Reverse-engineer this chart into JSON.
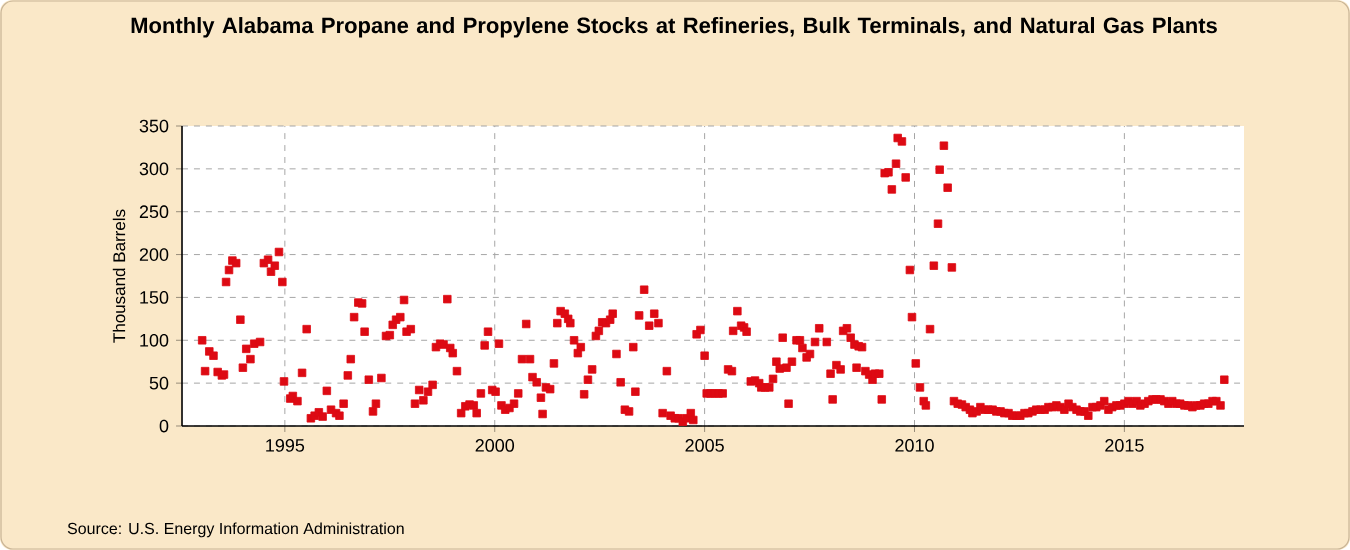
{
  "chart_data": {
    "type": "scatter",
    "title": "Monthly Alabama Propane and Propylene Stocks at Refineries, Bulk Terminals, and Natural Gas Plants",
    "ylabel": "Thousand Barrels",
    "annotations": [
      "Source: U.S. Energy Information Administration"
    ],
    "xlim": [
      1992.55,
      2017.85
    ],
    "xticks": [
      1995,
      2000,
      2005,
      2010,
      2015
    ],
    "ylim": [
      0,
      350
    ],
    "yticks": [
      0,
      50,
      100,
      150,
      200,
      250,
      300,
      350
    ],
    "grid": true,
    "marker": "square",
    "series": [
      {
        "color": "#dd0a13",
        "x": [
          1993.03,
          1993.1,
          1993.2,
          1993.3,
          1993.4,
          1993.5,
          1993.55,
          1993.6,
          1993.67,
          1993.75,
          1993.84,
          1993.94,
          1994.0,
          1994.08,
          1994.18,
          1994.27,
          1994.41,
          1994.5,
          1994.6,
          1994.67,
          1994.76,
          1994.86,
          1994.94,
          1994.98,
          1995.13,
          1995.19,
          1995.3,
          1995.41,
          1995.52,
          1995.62,
          1995.71,
          1995.81,
          1995.9,
          1996.0,
          1996.1,
          1996.22,
          1996.3,
          1996.4,
          1996.5,
          1996.57,
          1996.65,
          1996.75,
          1996.84,
          1996.9,
          1997.0,
          1997.1,
          1997.17,
          1997.3,
          1997.41,
          1997.5,
          1997.57,
          1997.65,
          1997.75,
          1997.84,
          1997.9,
          1998.0,
          1998.1,
          1998.2,
          1998.3,
          1998.41,
          1998.52,
          1998.6,
          1998.7,
          1998.78,
          1998.87,
          1998.94,
          1999.0,
          1999.1,
          1999.2,
          1999.3,
          1999.4,
          1999.5,
          1999.57,
          1999.67,
          1999.76,
          1999.84,
          1999.94,
          2000.02,
          2000.1,
          2000.16,
          2000.25,
          2000.35,
          2000.46,
          2000.56,
          2000.65,
          2000.75,
          2000.84,
          2000.9,
          2001.0,
          2001.1,
          2001.14,
          2001.22,
          2001.32,
          2001.41,
          2001.49,
          2001.57,
          2001.67,
          2001.75,
          2001.8,
          2001.89,
          2001.98,
          2002.05,
          2002.13,
          2002.22,
          2002.32,
          2002.41,
          2002.48,
          2002.56,
          2002.65,
          2002.75,
          2002.81,
          2002.9,
          2003.0,
          2003.1,
          2003.2,
          2003.3,
          2003.35,
          2003.44,
          2003.56,
          2003.68,
          2003.8,
          2003.9,
          2004.0,
          2004.1,
          2004.19,
          2004.29,
          2004.38,
          2004.48,
          2004.57,
          2004.67,
          2004.73,
          2004.81,
          2004.9,
          2005.0,
          2005.05,
          2005.14,
          2005.24,
          2005.33,
          2005.43,
          2005.56,
          2005.65,
          2005.68,
          2005.78,
          2005.87,
          2005.94,
          2006.0,
          2006.1,
          2006.2,
          2006.3,
          2006.35,
          2006.44,
          2006.54,
          2006.63,
          2006.71,
          2006.79,
          2006.86,
          2006.95,
          2007.0,
          2007.08,
          2007.19,
          2007.27,
          2007.33,
          2007.43,
          2007.51,
          2007.63,
          2007.73,
          2007.91,
          2008.0,
          2008.05,
          2008.14,
          2008.24,
          2008.3,
          2008.39,
          2008.48,
          2008.57,
          2008.62,
          2008.67,
          2008.75,
          2008.83,
          2008.92,
          2009.0,
          2009.06,
          2009.16,
          2009.22,
          2009.29,
          2009.38,
          2009.46,
          2009.56,
          2009.6,
          2009.7,
          2009.79,
          2009.89,
          2009.94,
          2010.03,
          2010.13,
          2010.22,
          2010.27,
          2010.37,
          2010.46,
          2010.56,
          2010.6,
          2010.7,
          2010.79,
          2010.89,
          2010.94,
          2011.03,
          2011.13,
          2011.22,
          2011.32,
          2011.38,
          2011.48,
          2011.57,
          2011.67,
          2011.76,
          2011.86,
          2011.95,
          2012.05,
          2012.14,
          2012.24,
          2012.33,
          2012.43,
          2012.52,
          2012.62,
          2012.71,
          2012.81,
          2012.9,
          2013.0,
          2013.1,
          2013.19,
          2013.29,
          2013.38,
          2013.48,
          2013.57,
          2013.67,
          2013.76,
          2013.86,
          2013.95,
          2014.05,
          2014.14,
          2014.24,
          2014.33,
          2014.43,
          2014.52,
          2014.62,
          2014.71,
          2014.81,
          2014.9,
          2015.0,
          2015.1,
          2015.19,
          2015.29,
          2015.38,
          2015.48,
          2015.57,
          2015.67,
          2015.76,
          2015.86,
          2015.95,
          2016.05,
          2016.14,
          2016.24,
          2016.33,
          2016.43,
          2016.52,
          2016.62,
          2016.71,
          2016.81,
          2016.9,
          2017.0,
          2017.1,
          2017.19,
          2017.29,
          2017.38
        ],
        "values": [
          100,
          64,
          87,
          82,
          63,
          59,
          60,
          168,
          182,
          193,
          190,
          124,
          68,
          90,
          78,
          96,
          98,
          190,
          194,
          180,
          187,
          203,
          168,
          52,
          32,
          35,
          29,
          62,
          113,
          9,
          12,
          16,
          11,
          41,
          19,
          15,
          12,
          26,
          59,
          78,
          127,
          144,
          143,
          110,
          54,
          17,
          26,
          56,
          105,
          106,
          118,
          124,
          127,
          147,
          110,
          113,
          26,
          42,
          30,
          40,
          48,
          92,
          96,
          95,
          148,
          91,
          85,
          64,
          15,
          23,
          25,
          24,
          15,
          38,
          94,
          110,
          42,
          40,
          96,
          24,
          19,
          21,
          26,
          38,
          78,
          119,
          78,
          57,
          51,
          33,
          14,
          45,
          43,
          73,
          120,
          134,
          131,
          125,
          120,
          100,
          85,
          92,
          37,
          54,
          66,
          105,
          111,
          121,
          120,
          124,
          131,
          84,
          51,
          19,
          17,
          92,
          40,
          129,
          159,
          117,
          131,
          120,
          15,
          64,
          12,
          9,
          9,
          5,
          9,
          15,
          7,
          107,
          112,
          82,
          38,
          38,
          38,
          38,
          38,
          66,
          64,
          111,
          134,
          117,
          115,
          110,
          52,
          53,
          50,
          45,
          45,
          45,
          55,
          75,
          67,
          103,
          68,
          26,
          75,
          100,
          100,
          91,
          80,
          84,
          98,
          114,
          98,
          61,
          31,
          71,
          66,
          111,
          114,
          103,
          95,
          68,
          93,
          92,
          64,
          60,
          54,
          61,
          61,
          31,
          295,
          296,
          276,
          306,
          336,
          332,
          290,
          182,
          127,
          73,
          45,
          29,
          24,
          113,
          187,
          236,
          299,
          327,
          278,
          185,
          29,
          26,
          25,
          22,
          19,
          15,
          17,
          22,
          19,
          19,
          19,
          17,
          17,
          15,
          15,
          12,
          12,
          12,
          15,
          15,
          17,
          19,
          19,
          19,
          22,
          22,
          24,
          22,
          19,
          26,
          22,
          19,
          17,
          17,
          12,
          22,
          22,
          24,
          29,
          19,
          22,
          24,
          24,
          26,
          29,
          26,
          29,
          24,
          26,
          29,
          31,
          31,
          31,
          29,
          26,
          29,
          26,
          26,
          24,
          24,
          22,
          24,
          24,
          26,
          26,
          29,
          29,
          24,
          54
        ]
      }
    ]
  }
}
